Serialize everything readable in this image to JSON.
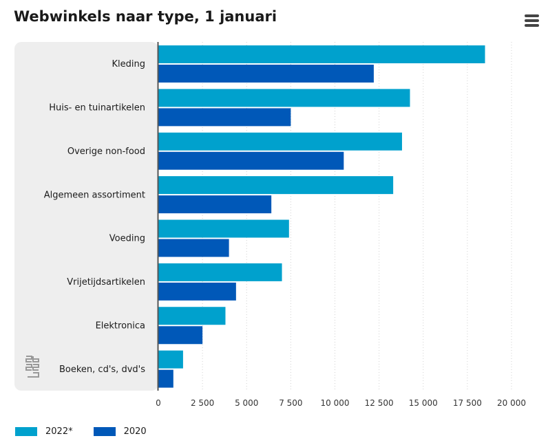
{
  "header": {
    "title": "Webwinkels naar type, 1 januari",
    "menu_icon": "hamburger-menu-icon"
  },
  "logo": {
    "icon": "cbs-logo-icon"
  },
  "colors": {
    "series_2022": "#00a1cd",
    "series_2020": "#0058b8",
    "plot_band": "#eeeeee",
    "axis": "#555555",
    "grid": "#d0d0d0"
  },
  "chart_data": {
    "type": "bar",
    "orientation": "horizontal",
    "title": "Webwinkels naar type, 1 januari",
    "categories": [
      "Kleding",
      "Huis- en tuinartikelen",
      "Overige non-food",
      "Algemeen assortiment",
      "Voeding",
      "Vrijetijdsartikelen",
      "Elektronica",
      "Boeken, cd's, dvd's"
    ],
    "series": [
      {
        "name": "2022*",
        "values": [
          18500,
          14250,
          13800,
          13300,
          7400,
          7000,
          3800,
          1400
        ]
      },
      {
        "name": "2020",
        "values": [
          12200,
          7500,
          10500,
          6400,
          4000,
          4400,
          2500,
          850
        ]
      }
    ],
    "xlim": [
      0,
      20000
    ],
    "xticks": [
      0,
      2500,
      5000,
      7500,
      10000,
      12500,
      15000,
      17500,
      20000
    ],
    "xtick_labels": [
      "0",
      "2 500",
      "5 000",
      "7 500",
      "10 000",
      "12 500",
      "15 000",
      "17 500",
      "20 000"
    ],
    "grid": "vertical dashed",
    "legend_position": "bottom-left"
  }
}
